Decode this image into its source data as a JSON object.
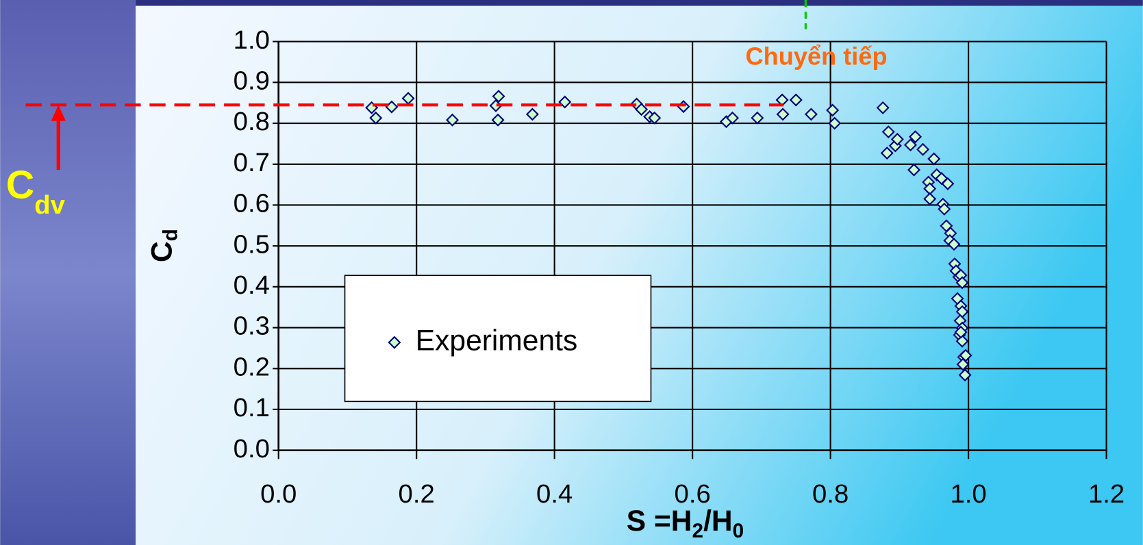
{
  "chart_data": {
    "type": "scatter",
    "annotation": "Chuyển tiếp",
    "cdv_label": {
      "main": "C",
      "sub": "dv"
    },
    "y_label": {
      "main": "C",
      "sub": "d"
    },
    "x_label": [
      "S =H",
      "2",
      "/H",
      "0"
    ],
    "hline": 0.845,
    "hline_color": "#ff0000",
    "vline": 0.764,
    "vline_color": "#00cc00",
    "xlim": [
      0,
      1.2
    ],
    "ylim": [
      0,
      1.0
    ],
    "xticks": [
      {
        "value": 0,
        "label": "0.0"
      },
      0.2,
      0.4,
      0.6,
      0.8,
      {
        "value": 1,
        "label": "1.0"
      },
      1.2
    ],
    "yticks": [
      {
        "value": 0,
        "label": "0.0"
      },
      0.1,
      0.2,
      0.3,
      0.4,
      0.5,
      0.6,
      0.7,
      0.8,
      0.9,
      {
        "value": 1,
        "label": "1.0"
      }
    ],
    "grid": true,
    "series": [
      {
        "name": "Experiments",
        "color": "#ccffcc",
        "edge_color": "#000080",
        "x": [
          0.135,
          0.141,
          0.164,
          0.188,
          0.252,
          0.315,
          0.319,
          0.318,
          0.368,
          0.415,
          0.519,
          0.526,
          0.538,
          0.545,
          0.587,
          0.649,
          0.658,
          0.694,
          0.73,
          0.731,
          0.75,
          0.772,
          0.803,
          0.806,
          0.876,
          0.884,
          0.882,
          0.894,
          0.897,
          0.916,
          0.923,
          0.921,
          0.934,
          0.95,
          0.954,
          0.942,
          0.944,
          0.944,
          0.961,
          0.97,
          0.963,
          0.965,
          0.968,
          0.974,
          0.973,
          0.979,
          0.98,
          0.982,
          0.986,
          0.989,
          0.991,
          0.984,
          0.989,
          0.991,
          0.988,
          0.991,
          0.987,
          0.991,
          0.989,
          0.993,
          0.996,
          0.992,
          0.995
        ],
        "values": [
          0.838,
          0.813,
          0.84,
          0.861,
          0.808,
          0.843,
          0.866,
          0.808,
          0.822,
          0.852,
          0.847,
          0.834,
          0.816,
          0.813,
          0.841,
          0.804,
          0.813,
          0.813,
          0.857,
          0.822,
          0.857,
          0.822,
          0.832,
          0.8,
          0.838,
          0.779,
          0.727,
          0.745,
          0.761,
          0.747,
          0.767,
          0.686,
          0.736,
          0.713,
          0.674,
          0.656,
          0.64,
          0.615,
          0.665,
          0.652,
          0.602,
          0.59,
          0.549,
          0.531,
          0.513,
          0.504,
          0.456,
          0.439,
          0.424,
          0.428,
          0.41,
          0.371,
          0.353,
          0.339,
          0.317,
          0.299,
          0.282,
          0.267,
          0.289,
          0.228,
          0.232,
          0.21,
          0.184
        ]
      }
    ],
    "legend": "center-left"
  }
}
